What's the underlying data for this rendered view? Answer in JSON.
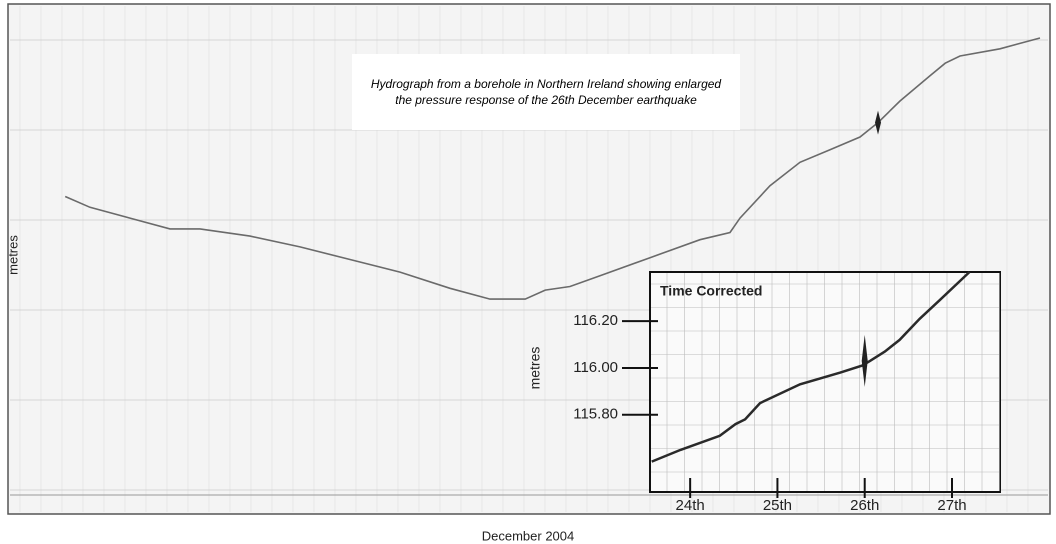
{
  "chart_data": [
    {
      "type": "line",
      "annotation": "Hydrograph from a borehole in Northern Ireland showing enlarged the pressure response of the 26th December earthquake",
      "ylabel": "metres",
      "xlabel": "December 2004",
      "x": [
        5.68,
        6.3,
        7.3,
        8.3,
        9.05,
        10.3,
        11.55,
        12.8,
        14.05,
        15.3,
        16.3,
        17.18,
        17.68,
        18.3,
        19.05,
        20.3,
        21.55,
        22.3,
        22.55,
        23.3,
        24.05,
        24.8,
        25.55,
        26.0,
        26.55,
        27.3,
        27.68,
        28.05,
        29.05,
        30.05
      ],
      "values": [
        115.62,
        115.56,
        115.5,
        115.44,
        115.44,
        115.4,
        115.34,
        115.27,
        115.2,
        115.11,
        115.05,
        115.05,
        115.1,
        115.12,
        115.18,
        115.28,
        115.38,
        115.42,
        115.5,
        115.68,
        115.81,
        115.88,
        115.95,
        116.03,
        116.15,
        116.29,
        116.36,
        116.4,
        116.44,
        116.5
      ],
      "xlim": [
        4.75,
        30.25
      ],
      "ylim": [
        113.99,
        116.6
      ],
      "color": "#6a6a6a",
      "grid": true
    },
    {
      "type": "line",
      "title": "Time Corrected",
      "ylabel": "metres",
      "x": [
        23.56,
        23.89,
        24.34,
        24.52,
        24.63,
        24.8,
        25.26,
        25.72,
        25.97,
        26.06,
        26.23,
        26.4,
        26.63,
        26.86,
        27.2
      ],
      "values": [
        115.6,
        115.65,
        115.71,
        115.76,
        115.78,
        115.85,
        115.93,
        115.98,
        116.01,
        116.03,
        116.07,
        116.12,
        116.21,
        116.29,
        116.41
      ],
      "xlim": [
        23.54,
        27.55
      ],
      "ylim": [
        115.47,
        116.41
      ],
      "xticks": [
        {
          "value": 24,
          "label": "24th"
        },
        {
          "value": 25,
          "label": "25th"
        },
        {
          "value": 26,
          "label": "26th"
        },
        {
          "value": 27,
          "label": "27th"
        }
      ],
      "yticks": [
        {
          "value": 115.8,
          "label": "115.80"
        },
        {
          "value": 116.0,
          "label": "116.00"
        },
        {
          "value": 116.2,
          "label": "116.20"
        }
      ],
      "color": "#2a2a2a",
      "grid": true
    }
  ]
}
